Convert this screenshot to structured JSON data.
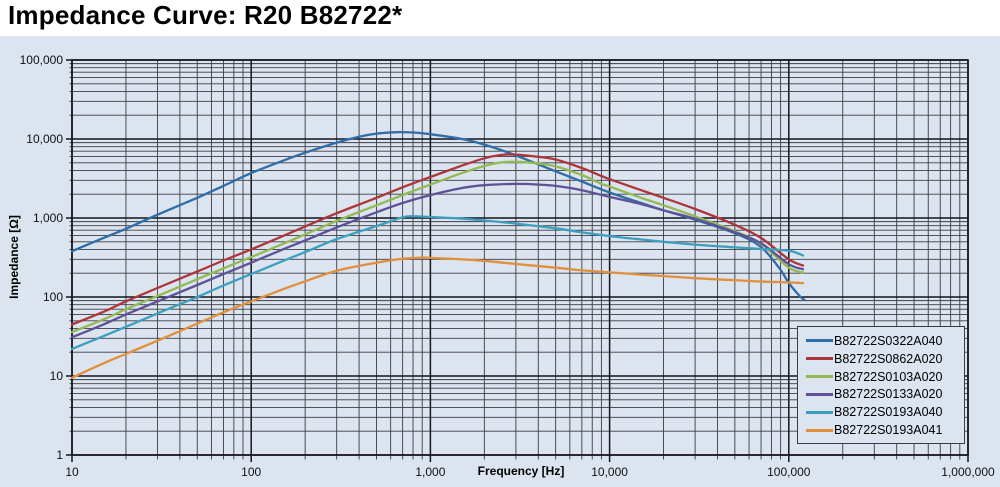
{
  "title": "Impedance Curve: R20 B82722*",
  "colors": {
    "panel_bg": "#dbe4ef",
    "grid_minor": "#3c3c44",
    "grid_major": "#15151c",
    "tick_text": "#111111",
    "legend_border": "#3a3a42"
  },
  "chart_data": {
    "type": "line",
    "title": "Impedance Curve: R20 B82722*",
    "grid": "log-log, dark minor and major gridlines on light blue background",
    "legend_position": "inside bottom-right",
    "x_axis": {
      "label": "Frequency [Hz]",
      "scale": "log",
      "min": 10,
      "max": 1000000,
      "tick_values": [
        10,
        100,
        1000,
        10000,
        100000,
        1000000
      ],
      "tick_labels": [
        "10",
        "100",
        "1,000",
        "10,000",
        "100,000",
        "1,000,000"
      ]
    },
    "y_axis": {
      "label": "Impedance [Ω]",
      "scale": "log",
      "min": 1,
      "max": 100000,
      "tick_values": [
        100000,
        10000,
        1000,
        100,
        10,
        1
      ],
      "tick_labels": [
        "100,000",
        "10,000",
        "1,000",
        "100",
        "10",
        "1"
      ]
    },
    "series": [
      {
        "name": "B82722S0322A040",
        "color": "#2f6da8",
        "points": [
          [
            10,
            380
          ],
          [
            15,
            560
          ],
          [
            20,
            730
          ],
          [
            30,
            1100
          ],
          [
            50,
            1800
          ],
          [
            70,
            2550
          ],
          [
            100,
            3700
          ],
          [
            150,
            5300
          ],
          [
            200,
            6700
          ],
          [
            300,
            9000
          ],
          [
            400,
            10700
          ],
          [
            500,
            11700
          ],
          [
            650,
            12200
          ],
          [
            800,
            12100
          ],
          [
            1000,
            11500
          ],
          [
            1500,
            10000
          ],
          [
            2000,
            8500
          ],
          [
            3000,
            6200
          ],
          [
            5000,
            3900
          ],
          [
            7000,
            2900
          ],
          [
            10000,
            2100
          ],
          [
            15000,
            1550
          ],
          [
            20000,
            1250
          ],
          [
            30000,
            950
          ],
          [
            50000,
            640
          ],
          [
            70000,
            430
          ],
          [
            90000,
            220
          ],
          [
            100000,
            150
          ],
          [
            115000,
            103
          ],
          [
            122000,
            92
          ]
        ]
      },
      {
        "name": "B82722S0862A020",
        "color": "#ad363b",
        "points": [
          [
            10,
            45
          ],
          [
            15,
            65
          ],
          [
            20,
            88
          ],
          [
            30,
            130
          ],
          [
            50,
            210
          ],
          [
            70,
            290
          ],
          [
            100,
            400
          ],
          [
            150,
            590
          ],
          [
            200,
            780
          ],
          [
            300,
            1150
          ],
          [
            500,
            1800
          ],
          [
            700,
            2450
          ],
          [
            1000,
            3300
          ],
          [
            1500,
            4600
          ],
          [
            2000,
            5700
          ],
          [
            2500,
            6300
          ],
          [
            3000,
            6350
          ],
          [
            4000,
            5950
          ],
          [
            5000,
            5500
          ],
          [
            7000,
            4300
          ],
          [
            9000,
            3400
          ],
          [
            10000,
            3100
          ],
          [
            15000,
            2250
          ],
          [
            20000,
            1800
          ],
          [
            30000,
            1300
          ],
          [
            50000,
            820
          ],
          [
            70000,
            560
          ],
          [
            100000,
            300
          ],
          [
            120000,
            250
          ]
        ]
      },
      {
        "name": "B82722S0103A020",
        "color": "#93b953",
        "points": [
          [
            10,
            36
          ],
          [
            15,
            52
          ],
          [
            20,
            70
          ],
          [
            30,
            103
          ],
          [
            50,
            168
          ],
          [
            70,
            230
          ],
          [
            100,
            320
          ],
          [
            150,
            470
          ],
          [
            200,
            620
          ],
          [
            300,
            920
          ],
          [
            500,
            1450
          ],
          [
            700,
            1950
          ],
          [
            1000,
            2650
          ],
          [
            1500,
            3700
          ],
          [
            2000,
            4550
          ],
          [
            2500,
            5050
          ],
          [
            3000,
            5150
          ],
          [
            4000,
            4900
          ],
          [
            5000,
            4500
          ],
          [
            7000,
            3500
          ],
          [
            9000,
            2700
          ],
          [
            10000,
            2500
          ],
          [
            15000,
            1800
          ],
          [
            20000,
            1450
          ],
          [
            30000,
            1050
          ],
          [
            50000,
            680
          ],
          [
            70000,
            470
          ],
          [
            100000,
            235
          ],
          [
            120000,
            205
          ]
        ]
      },
      {
        "name": "B82722S0133A020",
        "color": "#5e5198",
        "points": [
          [
            10,
            31
          ],
          [
            15,
            45
          ],
          [
            20,
            60
          ],
          [
            30,
            88
          ],
          [
            50,
            142
          ],
          [
            70,
            195
          ],
          [
            100,
            272
          ],
          [
            150,
            400
          ],
          [
            200,
            520
          ],
          [
            300,
            760
          ],
          [
            500,
            1180
          ],
          [
            700,
            1550
          ],
          [
            1000,
            1950
          ],
          [
            1500,
            2400
          ],
          [
            2000,
            2600
          ],
          [
            3000,
            2700
          ],
          [
            4000,
            2650
          ],
          [
            5000,
            2550
          ],
          [
            7000,
            2250
          ],
          [
            10000,
            1850
          ],
          [
            15000,
            1500
          ],
          [
            20000,
            1250
          ],
          [
            30000,
            980
          ],
          [
            50000,
            660
          ],
          [
            70000,
            480
          ],
          [
            100000,
            260
          ],
          [
            120000,
            225
          ]
        ]
      },
      {
        "name": "B82722S0193A040",
        "color": "#3d9fc0",
        "points": [
          [
            10,
            22
          ],
          [
            15,
            32
          ],
          [
            20,
            42
          ],
          [
            30,
            62
          ],
          [
            50,
            100
          ],
          [
            70,
            140
          ],
          [
            100,
            195
          ],
          [
            150,
            285
          ],
          [
            200,
            370
          ],
          [
            300,
            540
          ],
          [
            500,
            790
          ],
          [
            700,
            1020
          ],
          [
            800,
            1050
          ],
          [
            1000,
            1030
          ],
          [
            1500,
            980
          ],
          [
            2000,
            930
          ],
          [
            3000,
            850
          ],
          [
            5000,
            740
          ],
          [
            7000,
            660
          ],
          [
            10000,
            590
          ],
          [
            15000,
            535
          ],
          [
            20000,
            500
          ],
          [
            30000,
            460
          ],
          [
            50000,
            425
          ],
          [
            70000,
            405
          ],
          [
            100000,
            385
          ],
          [
            120000,
            335
          ]
        ]
      },
      {
        "name": "B82722S0193A041",
        "color": "#e0903c",
        "points": [
          [
            10,
            9.5
          ],
          [
            15,
            14.5
          ],
          [
            20,
            19
          ],
          [
            30,
            28
          ],
          [
            50,
            46
          ],
          [
            70,
            64
          ],
          [
            100,
            88
          ],
          [
            150,
            125
          ],
          [
            200,
            158
          ],
          [
            300,
            215
          ],
          [
            500,
            272
          ],
          [
            700,
            305
          ],
          [
            900,
            315
          ],
          [
            1000,
            313
          ],
          [
            1500,
            300
          ],
          [
            2000,
            287
          ],
          [
            3000,
            262
          ],
          [
            5000,
            235
          ],
          [
            7000,
            218
          ],
          [
            10000,
            205
          ],
          [
            15000,
            192
          ],
          [
            20000,
            184
          ],
          [
            30000,
            173
          ],
          [
            50000,
            163
          ],
          [
            70000,
            157
          ],
          [
            100000,
            153
          ],
          [
            120000,
            150
          ]
        ]
      }
    ]
  }
}
